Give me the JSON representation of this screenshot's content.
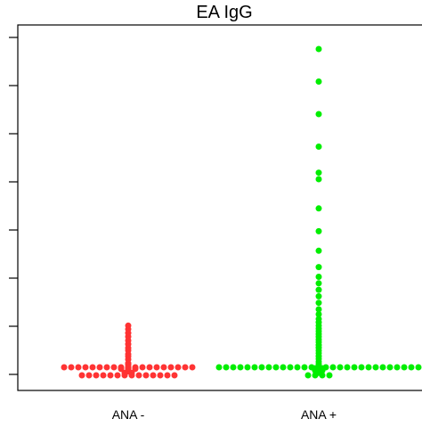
{
  "chart_data": {
    "type": "scatter",
    "title": "EA IgG",
    "categories": [
      "ANA -",
      "ANA +"
    ],
    "series": [
      {
        "category": "ANA -",
        "color": "#ff3333",
        "points": [
          {
            "y": 0.5,
            "count": 2
          },
          {
            "y": 0.9,
            "count": 1
          },
          {
            "y": 1.7,
            "count": 3
          },
          {
            "y": 1.9,
            "count": 1
          },
          {
            "y": 2.2,
            "count": 1
          },
          {
            "y": 3.0,
            "count": 1
          },
          {
            "y": 3.4,
            "count": 1
          },
          {
            "y": 4.6,
            "count": 1
          },
          {
            "y": 5.5,
            "count": 1
          },
          {
            "y": 6.2,
            "count": 1
          },
          {
            "y": 7.4,
            "count": 1
          },
          {
            "y": 8.1,
            "count": 1
          },
          {
            "y": 9.3,
            "count": 1
          },
          {
            "y": 10.4,
            "count": 1
          },
          {
            "y": 11.6,
            "count": 1
          },
          {
            "y": 12.7,
            "count": 1
          },
          {
            "y": 13.9,
            "count": 1
          },
          {
            "y": 15.0,
            "count": 1
          }
        ]
      },
      {
        "category": "ANA +",
        "color": "#00ee00",
        "points": [
          {
            "y": 0.5,
            "count": 1
          },
          {
            "y": 1.2,
            "count": 2
          },
          {
            "y": 1.9,
            "count": 2
          },
          {
            "y": 2.5,
            "count": 1
          },
          {
            "y": 3.2,
            "count": 1
          },
          {
            "y": 3.9,
            "count": 1
          },
          {
            "y": 4.8,
            "count": 1
          },
          {
            "y": 5.6,
            "count": 1
          },
          {
            "y": 6.5,
            "count": 1
          },
          {
            "y": 7.3,
            "count": 1
          },
          {
            "y": 8.2,
            "count": 1
          },
          {
            "y": 9.0,
            "count": 1
          },
          {
            "y": 9.9,
            "count": 1
          },
          {
            "y": 10.7,
            "count": 1
          },
          {
            "y": 11.6,
            "count": 1
          },
          {
            "y": 12.4,
            "count": 1
          },
          {
            "y": 13.3,
            "count": 1
          },
          {
            "y": 14.1,
            "count": 1
          },
          {
            "y": 15.0,
            "count": 1
          },
          {
            "y": 16.0,
            "count": 1
          },
          {
            "y": 17.0,
            "count": 1
          },
          {
            "y": 18.5,
            "count": 1
          },
          {
            "y": 20.0,
            "count": 1
          },
          {
            "y": 22.0,
            "count": 1
          },
          {
            "y": 24.0,
            "count": 1
          },
          {
            "y": 26.0,
            "count": 1
          },
          {
            "y": 28.0,
            "count": 1
          },
          {
            "y": 30.0,
            "count": 1
          },
          {
            "y": 33.0,
            "count": 1
          },
          {
            "y": 38.0,
            "count": 1
          },
          {
            "y": 44.0,
            "count": 1
          },
          {
            "y": 51.0,
            "count": 1
          },
          {
            "y": 60.0,
            "count": 1
          },
          {
            "y": 62.0,
            "count": 1
          },
          {
            "y": 70.0,
            "count": 1
          },
          {
            "y": 80.0,
            "count": 1
          },
          {
            "y": 90.0,
            "count": 1
          },
          {
            "y": 100.0,
            "count": 1
          }
        ]
      }
    ],
    "xlabel": "",
    "ylabel": "",
    "ylim": [
      0,
      100
    ],
    "grid": false
  }
}
